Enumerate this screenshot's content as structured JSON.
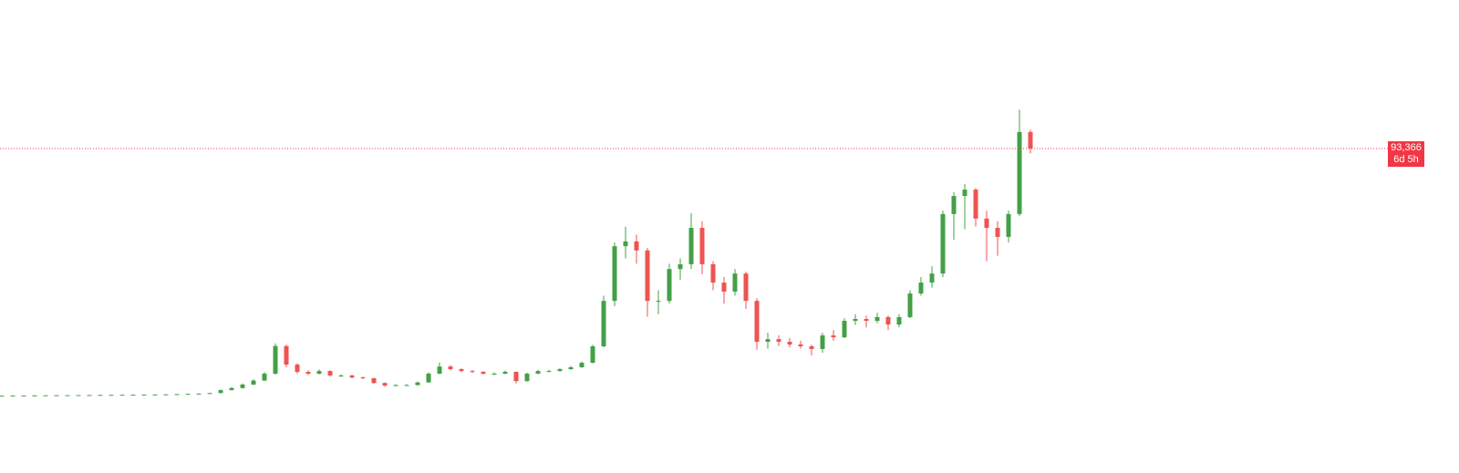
{
  "chart_data": {
    "type": "candlestick",
    "up_color": "#43a047",
    "down_color": "#ef5350",
    "ylim": [
      -28800,
      149300
    ],
    "open": [
      280,
      300,
      350,
      400,
      420,
      450,
      480,
      500,
      520,
      560,
      600,
      620,
      650,
      700,
      720,
      760,
      800,
      900,
      1000,
      1100,
      1300,
      2400,
      3200,
      4500,
      6000,
      8600,
      19000,
      12000,
      9300,
      8600,
      9600,
      7900,
      7900,
      7200,
      6900,
      5100,
      4100,
      4300,
      4300,
      5300,
      8600,
      11300,
      10300,
      9600,
      9300,
      8600,
      8600,
      9300,
      5800,
      8600,
      9600,
      9600,
      10300,
      11000,
      12700,
      18900,
      36000,
      56600,
      58400,
      55000,
      36000,
      36000,
      48000,
      49800,
      63500,
      49800,
      42900,
      39500,
      46300,
      36000,
      20600,
      21600,
      20600,
      19600,
      18900,
      17900,
      23000,
      22300,
      28500,
      29200,
      28500,
      29900,
      27100,
      29900,
      38800,
      42900,
      46300,
      68700,
      75500,
      77900,
      67000,
      63500,
      60100,
      68700,
      99600
    ],
    "high": [
      310,
      360,
      410,
      440,
      470,
      500,
      520,
      540,
      580,
      620,
      650,
      680,
      730,
      750,
      800,
      840,
      950,
      1050,
      1200,
      1400,
      2600,
      3500,
      4900,
      6500,
      9200,
      20000,
      19500,
      12500,
      9900,
      10200,
      9900,
      8400,
      8200,
      7500,
      7000,
      5300,
      4600,
      4700,
      5600,
      9100,
      12800,
      11800,
      10600,
      10000,
      9500,
      9100,
      9800,
      9400,
      9000,
      10000,
      10100,
      10700,
      11500,
      13200,
      19500,
      38000,
      58000,
      64000,
      61000,
      56000,
      40000,
      50000,
      52000,
      69000,
      66000,
      51000,
      45000,
      48000,
      47000,
      37000,
      24000,
      23000,
      22000,
      21000,
      19500,
      24000,
      25000,
      29500,
      31000,
      30500,
      31500,
      30500,
      31000,
      40000,
      45000,
      49000,
      70000,
      77000,
      80000,
      78500,
      70000,
      66000,
      70000,
      108000,
      100500
    ],
    "low": [
      270,
      290,
      340,
      390,
      410,
      440,
      470,
      490,
      510,
      550,
      580,
      600,
      640,
      680,
      700,
      740,
      780,
      880,
      950,
      1050,
      1250,
      2300,
      3000,
      4300,
      5800,
      8200,
      11000,
      8500,
      8000,
      8300,
      7500,
      7400,
      6800,
      6500,
      4800,
      3700,
      3900,
      4000,
      4200,
      5200,
      8400,
      9800,
      9100,
      8800,
      8200,
      8100,
      8400,
      4900,
      5600,
      8400,
      9200,
      9400,
      10100,
      10800,
      12500,
      18500,
      34000,
      52000,
      50000,
      30000,
      31000,
      35000,
      44000,
      48000,
      46000,
      40000,
      35000,
      38000,
      33000,
      17600,
      18000,
      19000,
      18500,
      18000,
      15500,
      16500,
      21000,
      22000,
      27000,
      26000,
      27500,
      25000,
      26000,
      29500,
      38000,
      41000,
      45000,
      59000,
      63000,
      64000,
      51000,
      53000,
      58000,
      68000,
      91500
    ],
    "close": [
      300,
      350,
      400,
      420,
      450,
      480,
      500,
      520,
      560,
      600,
      620,
      650,
      700,
      720,
      760,
      800,
      900,
      1000,
      1100,
      1300,
      2400,
      3200,
      4500,
      6000,
      8600,
      19000,
      12000,
      9300,
      8600,
      9600,
      7900,
      7900,
      7200,
      6900,
      5100,
      4100,
      4300,
      4300,
      5300,
      8600,
      11300,
      10300,
      9600,
      9300,
      8600,
      8600,
      9300,
      5800,
      8600,
      9600,
      9600,
      10300,
      11000,
      12700,
      18900,
      36000,
      56600,
      58400,
      55000,
      36000,
      36000,
      48000,
      49800,
      63500,
      49800,
      42900,
      39500,
      46300,
      36000,
      20600,
      21600,
      20600,
      19600,
      18900,
      17900,
      23000,
      22300,
      28500,
      29200,
      28500,
      29900,
      27100,
      29900,
      38800,
      42900,
      46300,
      68700,
      75500,
      77900,
      67000,
      63500,
      60100,
      68700,
      99600,
      93366
    ],
    "last_price": {
      "value": 93366,
      "label": "93,366",
      "color": "#f23645"
    },
    "countdown": "6d 5h"
  }
}
